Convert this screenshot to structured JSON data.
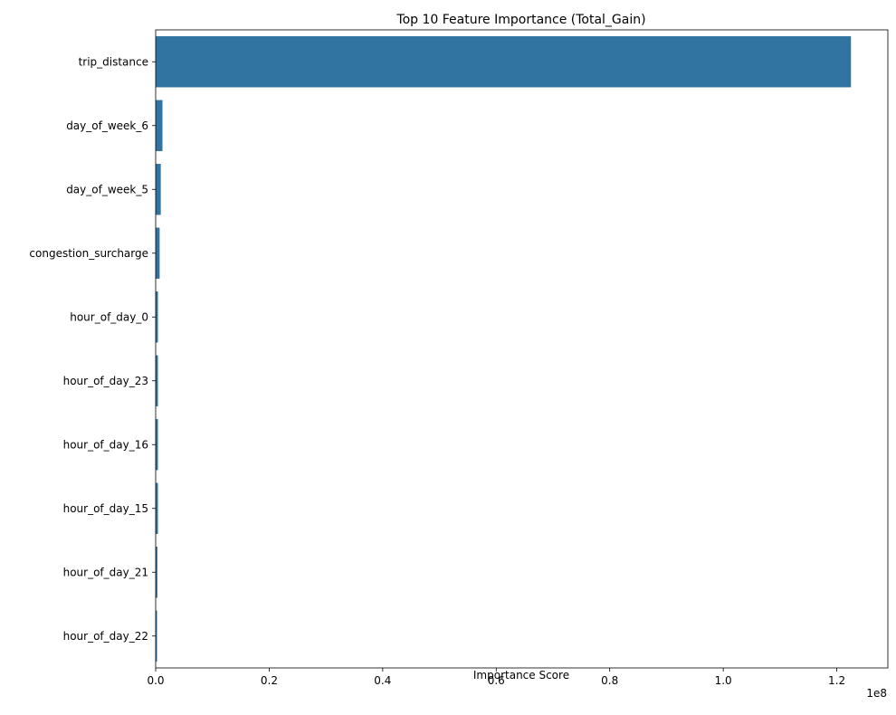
{
  "chart_data": {
    "type": "bar",
    "orientation": "horizontal",
    "title": "Top 10 Feature Importance (Total_Gain)",
    "xlabel": "Importance Score",
    "ylabel": "",
    "x_scale_label": "1e8",
    "xlim": [
      0,
      1.29
    ],
    "x_ticks": [
      0.0,
      0.2,
      0.4,
      0.6,
      0.8,
      1.0,
      1.2
    ],
    "x_tick_labels": [
      "0.0",
      "0.2",
      "0.4",
      "0.6",
      "0.8",
      "1.0",
      "1.2"
    ],
    "categories": [
      "trip_distance",
      "day_of_week_6",
      "day_of_week_5",
      "congestion_surcharge",
      "hour_of_day_0",
      "hour_of_day_23",
      "hour_of_day_16",
      "hour_of_day_15",
      "hour_of_day_21",
      "hour_of_day_22"
    ],
    "values": [
      1.225,
      0.012,
      0.009,
      0.007,
      0.004,
      0.004,
      0.004,
      0.004,
      0.003,
      0.002
    ],
    "value_unit_multiplier": "1e8",
    "bar_color": "#3274a1",
    "grid": false,
    "legend": "none"
  }
}
